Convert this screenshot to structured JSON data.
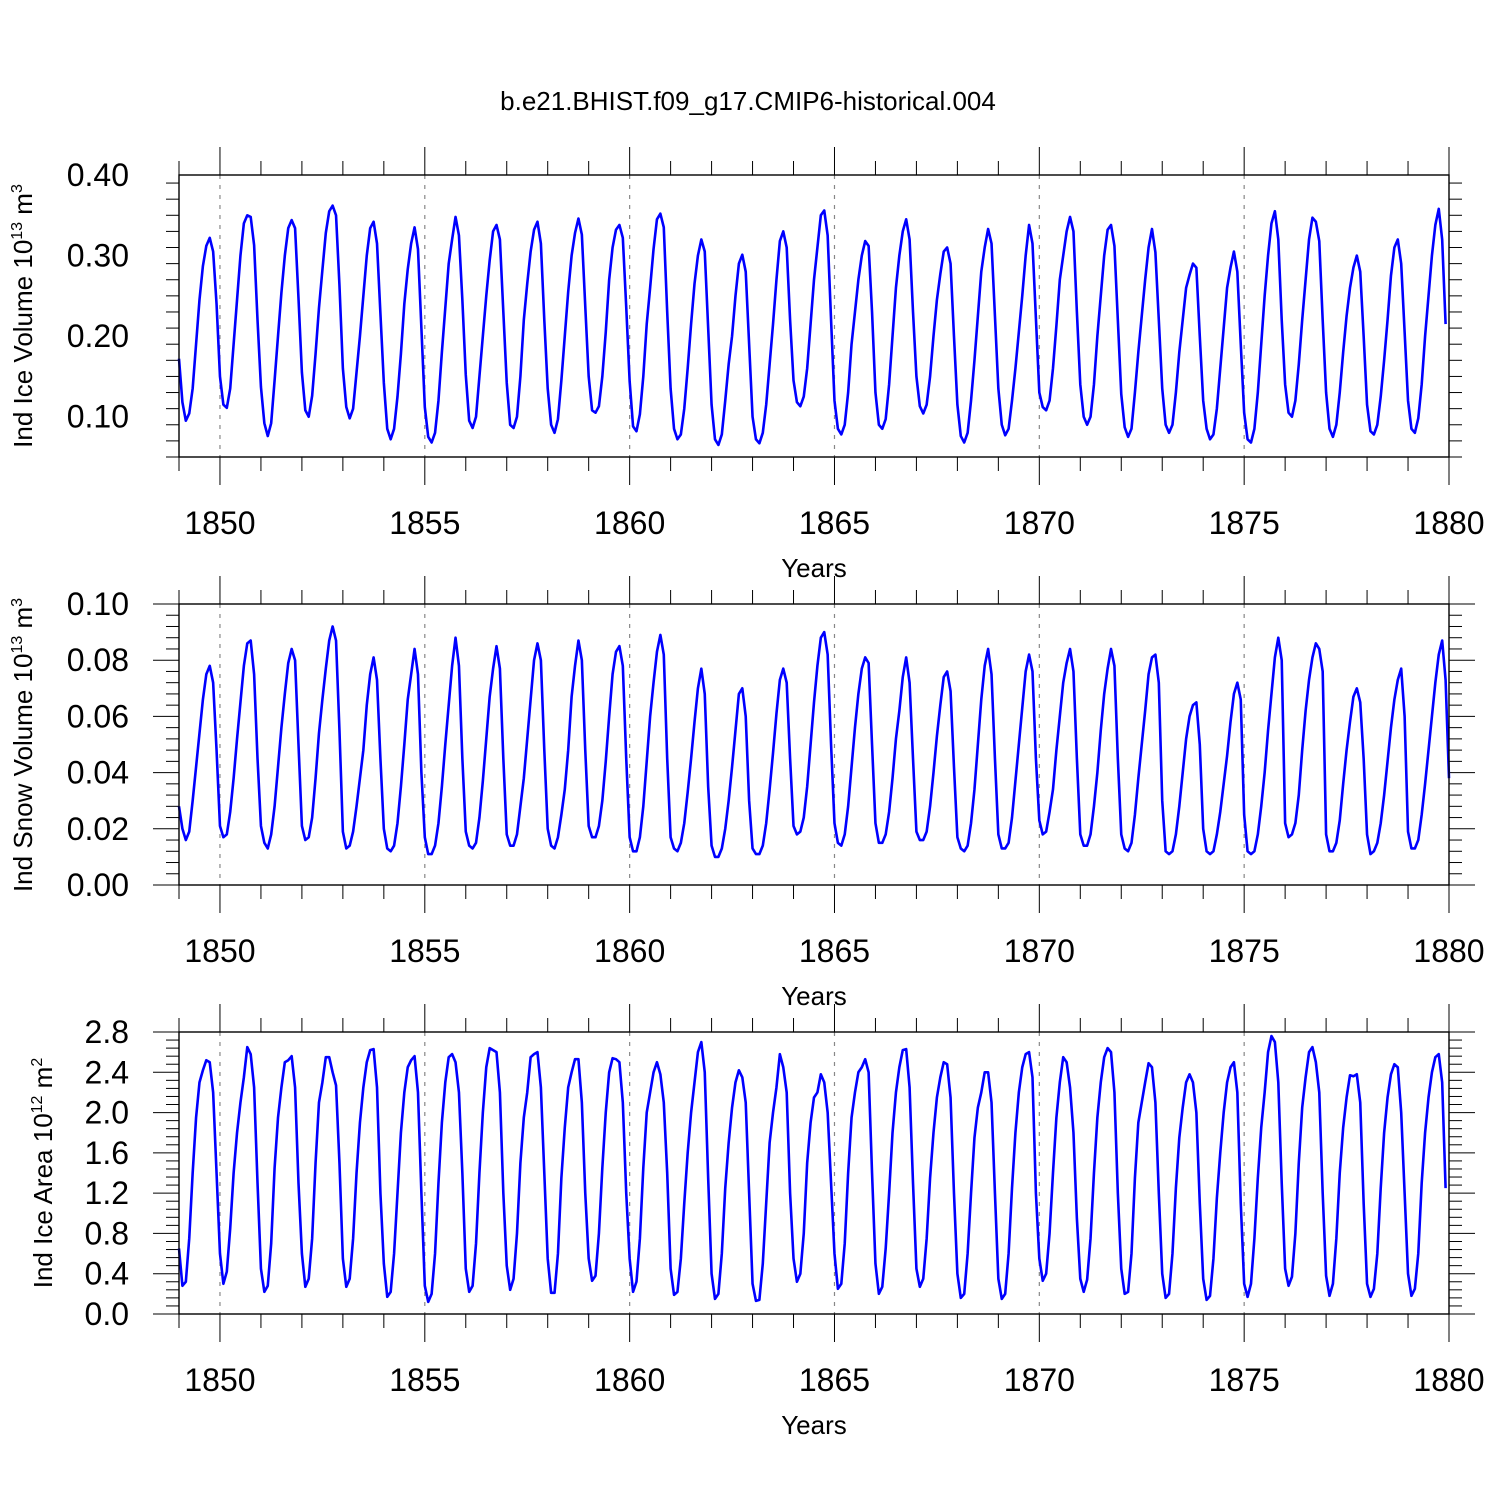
{
  "title": "b.e21.BHIST.f09_g17.CMIP6-historical.004",
  "line_color": "#0000ff",
  "chart_data": [
    {
      "id": "ice_volume",
      "type": "line",
      "ylabel": {
        "base": "Ind Ice Volume 10",
        "exp": "13",
        "unit": " m",
        "unit_exp": "3"
      },
      "xlabel": "Years",
      "xlim": [
        1849.0,
        1880.0
      ],
      "ylim": [
        0.05,
        0.4
      ],
      "yticks": [
        0.1,
        0.2,
        0.3,
        0.4
      ],
      "ytick_labels": [
        "0.10",
        "0.20",
        "0.30",
        "0.40"
      ],
      "xticks": [
        1850,
        1855,
        1860,
        1865,
        1870,
        1875,
        1880
      ],
      "xtick_labels": [
        "1850",
        "1855",
        "1860",
        "1865",
        "1870",
        "1875",
        "1880"
      ],
      "start_year": 1849.0,
      "monthly_values": [
        0.172,
        0.118,
        0.095,
        0.104,
        0.135,
        0.19,
        0.245,
        0.287,
        0.312,
        0.322,
        0.305,
        0.24,
        0.15,
        0.115,
        0.111,
        0.135,
        0.19,
        0.245,
        0.3,
        0.34,
        0.35,
        0.348,
        0.313,
        0.22,
        0.137,
        0.092,
        0.076,
        0.092,
        0.145,
        0.2,
        0.254,
        0.3,
        0.334,
        0.344,
        0.334,
        0.247,
        0.155,
        0.108,
        0.1,
        0.126,
        0.178,
        0.235,
        0.282,
        0.328,
        0.355,
        0.362,
        0.35,
        0.263,
        0.16,
        0.112,
        0.098,
        0.11,
        0.155,
        0.2,
        0.25,
        0.3,
        0.334,
        0.342,
        0.315,
        0.228,
        0.142,
        0.085,
        0.072,
        0.085,
        0.125,
        0.178,
        0.24,
        0.283,
        0.315,
        0.335,
        0.308,
        0.21,
        0.112,
        0.075,
        0.068,
        0.08,
        0.12,
        0.18,
        0.235,
        0.29,
        0.32,
        0.348,
        0.325,
        0.245,
        0.152,
        0.095,
        0.086,
        0.1,
        0.15,
        0.2,
        0.25,
        0.294,
        0.33,
        0.338,
        0.32,
        0.23,
        0.142,
        0.09,
        0.086,
        0.1,
        0.15,
        0.22,
        0.265,
        0.305,
        0.332,
        0.342,
        0.315,
        0.22,
        0.135,
        0.09,
        0.08,
        0.097,
        0.145,
        0.2,
        0.255,
        0.3,
        0.328,
        0.346,
        0.326,
        0.237,
        0.15,
        0.108,
        0.105,
        0.113,
        0.15,
        0.205,
        0.27,
        0.31,
        0.332,
        0.338,
        0.322,
        0.236,
        0.144,
        0.088,
        0.082,
        0.103,
        0.15,
        0.215,
        0.26,
        0.308,
        0.345,
        0.352,
        0.335,
        0.23,
        0.135,
        0.085,
        0.072,
        0.078,
        0.11,
        0.16,
        0.215,
        0.265,
        0.3,
        0.32,
        0.305,
        0.21,
        0.115,
        0.072,
        0.065,
        0.078,
        0.12,
        0.165,
        0.2,
        0.25,
        0.29,
        0.301,
        0.28,
        0.19,
        0.1,
        0.072,
        0.067,
        0.08,
        0.115,
        0.165,
        0.215,
        0.27,
        0.318,
        0.33,
        0.31,
        0.22,
        0.145,
        0.118,
        0.113,
        0.125,
        0.16,
        0.215,
        0.27,
        0.31,
        0.35,
        0.356,
        0.325,
        0.22,
        0.12,
        0.085,
        0.078,
        0.09,
        0.13,
        0.19,
        0.23,
        0.27,
        0.3,
        0.318,
        0.312,
        0.23,
        0.13,
        0.09,
        0.085,
        0.097,
        0.14,
        0.2,
        0.26,
        0.3,
        0.33,
        0.345,
        0.32,
        0.23,
        0.15,
        0.113,
        0.104,
        0.115,
        0.15,
        0.2,
        0.245,
        0.277,
        0.305,
        0.31,
        0.29,
        0.2,
        0.115,
        0.076,
        0.068,
        0.08,
        0.12,
        0.17,
        0.225,
        0.28,
        0.31,
        0.333,
        0.315,
        0.225,
        0.135,
        0.09,
        0.077,
        0.085,
        0.12,
        0.16,
        0.205,
        0.25,
        0.3,
        0.338,
        0.315,
        0.222,
        0.13,
        0.112,
        0.108,
        0.12,
        0.16,
        0.213,
        0.27,
        0.3,
        0.33,
        0.348,
        0.33,
        0.23,
        0.14,
        0.1,
        0.09,
        0.1,
        0.14,
        0.2,
        0.25,
        0.3,
        0.332,
        0.338,
        0.312,
        0.22,
        0.128,
        0.087,
        0.075,
        0.085,
        0.13,
        0.18,
        0.225,
        0.27,
        0.31,
        0.333,
        0.304,
        0.22,
        0.135,
        0.09,
        0.08,
        0.09,
        0.13,
        0.18,
        0.22,
        0.26,
        0.276,
        0.29,
        0.285,
        0.2,
        0.12,
        0.085,
        0.072,
        0.078,
        0.11,
        0.16,
        0.21,
        0.26,
        0.285,
        0.305,
        0.28,
        0.19,
        0.105,
        0.072,
        0.068,
        0.085,
        0.13,
        0.19,
        0.25,
        0.3,
        0.34,
        0.355,
        0.32,
        0.22,
        0.14,
        0.105,
        0.1,
        0.12,
        0.165,
        0.22,
        0.27,
        0.32,
        0.347,
        0.342,
        0.318,
        0.22,
        0.13,
        0.085,
        0.075,
        0.09,
        0.13,
        0.18,
        0.225,
        0.26,
        0.285,
        0.3,
        0.28,
        0.2,
        0.115,
        0.082,
        0.078,
        0.09,
        0.125,
        0.17,
        0.22,
        0.275,
        0.31,
        0.32,
        0.29,
        0.205,
        0.12,
        0.085,
        0.08,
        0.098,
        0.14,
        0.2,
        0.25,
        0.3,
        0.338,
        0.358,
        0.32,
        0.215
      ]
    },
    {
      "id": "snow_volume",
      "type": "line",
      "ylabel": {
        "base": "Ind Snow Volume 10",
        "exp": "13",
        "unit": " m",
        "unit_exp": "3"
      },
      "xlabel": "Years",
      "xlim": [
        1849.0,
        1880.0
      ],
      "ylim": [
        0.0,
        0.1
      ],
      "yticks": [
        0.0,
        0.02,
        0.04,
        0.06,
        0.08,
        0.1
      ],
      "ytick_labels": [
        "0.00",
        "0.02",
        "0.04",
        "0.06",
        "0.08",
        "0.10"
      ],
      "xticks": [
        1850,
        1855,
        1860,
        1865,
        1870,
        1875,
        1880
      ],
      "xtick_labels": [
        "1850",
        "1855",
        "1860",
        "1865",
        "1870",
        "1875",
        "1880"
      ],
      "start_year": 1849.0,
      "monthly_values": [
        0.028,
        0.02,
        0.016,
        0.019,
        0.03,
        0.042,
        0.054,
        0.066,
        0.075,
        0.078,
        0.072,
        0.048,
        0.021,
        0.017,
        0.018,
        0.026,
        0.038,
        0.052,
        0.065,
        0.078,
        0.086,
        0.087,
        0.075,
        0.045,
        0.021,
        0.015,
        0.013,
        0.018,
        0.028,
        0.042,
        0.056,
        0.068,
        0.079,
        0.084,
        0.08,
        0.05,
        0.021,
        0.016,
        0.017,
        0.024,
        0.038,
        0.054,
        0.066,
        0.077,
        0.087,
        0.092,
        0.087,
        0.055,
        0.019,
        0.013,
        0.014,
        0.019,
        0.028,
        0.038,
        0.048,
        0.064,
        0.075,
        0.081,
        0.073,
        0.045,
        0.02,
        0.013,
        0.012,
        0.014,
        0.022,
        0.035,
        0.05,
        0.066,
        0.075,
        0.084,
        0.075,
        0.04,
        0.017,
        0.011,
        0.011,
        0.014,
        0.022,
        0.035,
        0.05,
        0.064,
        0.078,
        0.088,
        0.078,
        0.045,
        0.019,
        0.014,
        0.013,
        0.015,
        0.024,
        0.037,
        0.052,
        0.067,
        0.077,
        0.085,
        0.077,
        0.045,
        0.018,
        0.014,
        0.014,
        0.018,
        0.028,
        0.038,
        0.052,
        0.066,
        0.08,
        0.086,
        0.08,
        0.048,
        0.02,
        0.014,
        0.013,
        0.017,
        0.025,
        0.034,
        0.048,
        0.067,
        0.078,
        0.087,
        0.08,
        0.048,
        0.021,
        0.017,
        0.017,
        0.021,
        0.03,
        0.044,
        0.06,
        0.075,
        0.083,
        0.085,
        0.078,
        0.045,
        0.017,
        0.012,
        0.012,
        0.017,
        0.028,
        0.044,
        0.06,
        0.072,
        0.083,
        0.089,
        0.082,
        0.045,
        0.017,
        0.013,
        0.012,
        0.015,
        0.022,
        0.033,
        0.045,
        0.058,
        0.07,
        0.077,
        0.068,
        0.035,
        0.014,
        0.01,
        0.01,
        0.013,
        0.02,
        0.03,
        0.042,
        0.055,
        0.068,
        0.07,
        0.06,
        0.03,
        0.013,
        0.011,
        0.011,
        0.014,
        0.022,
        0.034,
        0.047,
        0.061,
        0.073,
        0.077,
        0.072,
        0.045,
        0.021,
        0.018,
        0.019,
        0.024,
        0.035,
        0.05,
        0.065,
        0.078,
        0.088,
        0.09,
        0.082,
        0.05,
        0.022,
        0.015,
        0.014,
        0.018,
        0.028,
        0.042,
        0.056,
        0.068,
        0.077,
        0.081,
        0.079,
        0.05,
        0.022,
        0.015,
        0.015,
        0.018,
        0.026,
        0.038,
        0.052,
        0.062,
        0.074,
        0.081,
        0.072,
        0.045,
        0.019,
        0.016,
        0.016,
        0.019,
        0.028,
        0.04,
        0.053,
        0.064,
        0.074,
        0.076,
        0.069,
        0.042,
        0.017,
        0.013,
        0.012,
        0.014,
        0.022,
        0.034,
        0.05,
        0.066,
        0.078,
        0.084,
        0.075,
        0.045,
        0.018,
        0.013,
        0.013,
        0.015,
        0.024,
        0.037,
        0.05,
        0.063,
        0.076,
        0.082,
        0.076,
        0.045,
        0.023,
        0.018,
        0.019,
        0.026,
        0.034,
        0.048,
        0.06,
        0.072,
        0.079,
        0.084,
        0.076,
        0.045,
        0.018,
        0.014,
        0.014,
        0.018,
        0.028,
        0.04,
        0.055,
        0.068,
        0.077,
        0.084,
        0.078,
        0.045,
        0.018,
        0.013,
        0.012,
        0.015,
        0.025,
        0.038,
        0.05,
        0.062,
        0.075,
        0.081,
        0.082,
        0.072,
        0.03,
        0.012,
        0.011,
        0.012,
        0.018,
        0.028,
        0.04,
        0.052,
        0.06,
        0.064,
        0.065,
        0.05,
        0.02,
        0.012,
        0.011,
        0.012,
        0.018,
        0.026,
        0.036,
        0.046,
        0.058,
        0.068,
        0.072,
        0.066,
        0.025,
        0.012,
        0.011,
        0.012,
        0.018,
        0.028,
        0.04,
        0.055,
        0.068,
        0.081,
        0.088,
        0.08,
        0.022,
        0.017,
        0.018,
        0.022,
        0.032,
        0.048,
        0.062,
        0.073,
        0.081,
        0.086,
        0.084,
        0.076,
        0.018,
        0.012,
        0.012,
        0.015,
        0.023,
        0.036,
        0.048,
        0.058,
        0.067,
        0.07,
        0.065,
        0.045,
        0.018,
        0.011,
        0.012,
        0.015,
        0.022,
        0.032,
        0.044,
        0.056,
        0.066,
        0.073,
        0.077,
        0.06,
        0.019,
        0.013,
        0.013,
        0.016,
        0.025,
        0.036,
        0.048,
        0.06,
        0.072,
        0.082,
        0.087,
        0.073,
        0.038
      ]
    },
    {
      "id": "ice_area",
      "type": "line",
      "ylabel": {
        "base": "Ind Ice Area 10",
        "exp": "12",
        "unit": " m",
        "unit_exp": "2"
      },
      "xlabel": "Years",
      "xlim": [
        1849.0,
        1880.0
      ],
      "ylim": [
        0.0,
        2.8
      ],
      "yticks": [
        0.0,
        0.4,
        0.8,
        1.2,
        1.6,
        2.0,
        2.4,
        2.8
      ],
      "ytick_labels": [
        "0.0",
        "0.4",
        "0.8",
        "1.2",
        "1.6",
        "2.0",
        "2.4",
        "2.8"
      ],
      "xticks": [
        1850,
        1855,
        1860,
        1865,
        1870,
        1875,
        1880
      ],
      "xtick_labels": [
        "1850",
        "1855",
        "1860",
        "1865",
        "1870",
        "1875",
        "1880"
      ],
      "start_year": 1849.0,
      "monthly_values": [
        0.65,
        0.28,
        0.32,
        0.75,
        1.4,
        1.95,
        2.3,
        2.42,
        2.52,
        2.5,
        2.2,
        1.4,
        0.6,
        0.3,
        0.42,
        0.85,
        1.4,
        1.8,
        2.1,
        2.35,
        2.65,
        2.58,
        2.25,
        1.3,
        0.45,
        0.22,
        0.28,
        0.7,
        1.45,
        1.95,
        2.25,
        2.5,
        2.52,
        2.56,
        2.25,
        1.3,
        0.6,
        0.27,
        0.35,
        0.75,
        1.5,
        2.1,
        2.3,
        2.55,
        2.55,
        2.4,
        2.27,
        1.5,
        0.55,
        0.27,
        0.35,
        0.75,
        1.4,
        1.9,
        2.25,
        2.5,
        2.62,
        2.63,
        2.25,
        1.2,
        0.5,
        0.17,
        0.22,
        0.6,
        1.2,
        1.8,
        2.2,
        2.45,
        2.52,
        2.56,
        2.2,
        1.2,
        0.28,
        0.12,
        0.2,
        0.6,
        1.3,
        1.9,
        2.3,
        2.55,
        2.58,
        2.5,
        2.2,
        1.4,
        0.45,
        0.22,
        0.28,
        0.7,
        1.4,
        2.0,
        2.45,
        2.64,
        2.62,
        2.6,
        2.2,
        1.2,
        0.48,
        0.24,
        0.35,
        0.8,
        1.5,
        1.95,
        2.2,
        2.55,
        2.58,
        2.6,
        2.25,
        1.4,
        0.55,
        0.21,
        0.21,
        0.6,
        1.35,
        1.85,
        2.25,
        2.4,
        2.53,
        2.53,
        2.1,
        1.2,
        0.55,
        0.33,
        0.38,
        0.8,
        1.45,
        2.0,
        2.4,
        2.54,
        2.53,
        2.5,
        2.1,
        1.2,
        0.55,
        0.22,
        0.32,
        0.75,
        1.45,
        2.0,
        2.2,
        2.4,
        2.5,
        2.38,
        2.1,
        1.4,
        0.45,
        0.19,
        0.22,
        0.55,
        1.1,
        1.6,
        2.0,
        2.3,
        2.6,
        2.7,
        2.4,
        1.35,
        0.4,
        0.15,
        0.2,
        0.6,
        1.25,
        1.7,
        2.05,
        2.3,
        2.42,
        2.35,
        2.1,
        1.2,
        0.3,
        0.13,
        0.14,
        0.5,
        1.1,
        1.7,
        2.0,
        2.25,
        2.58,
        2.45,
        2.2,
        1.2,
        0.55,
        0.32,
        0.4,
        0.8,
        1.5,
        1.9,
        2.15,
        2.2,
        2.38,
        2.3,
        2.0,
        1.3,
        0.6,
        0.25,
        0.3,
        0.7,
        1.4,
        1.95,
        2.2,
        2.4,
        2.45,
        2.53,
        2.4,
        1.4,
        0.5,
        0.2,
        0.27,
        0.65,
        1.2,
        1.8,
        2.2,
        2.45,
        2.62,
        2.63,
        2.25,
        1.3,
        0.45,
        0.27,
        0.35,
        0.75,
        1.35,
        1.8,
        2.15,
        2.35,
        2.5,
        2.48,
        2.15,
        1.2,
        0.4,
        0.16,
        0.2,
        0.6,
        1.2,
        1.75,
        2.05,
        2.2,
        2.4,
        2.4,
        2.1,
        1.2,
        0.35,
        0.15,
        0.2,
        0.6,
        1.25,
        1.8,
        2.2,
        2.45,
        2.58,
        2.6,
        2.35,
        1.2,
        0.55,
        0.33,
        0.4,
        0.8,
        1.4,
        1.95,
        2.3,
        2.55,
        2.5,
        2.25,
        1.8,
        0.95,
        0.35,
        0.22,
        0.34,
        0.75,
        1.4,
        1.95,
        2.3,
        2.55,
        2.64,
        2.6,
        2.2,
        1.2,
        0.45,
        0.2,
        0.22,
        0.6,
        1.35,
        1.9,
        2.1,
        2.3,
        2.49,
        2.45,
        2.1,
        1.2,
        0.4,
        0.16,
        0.2,
        0.6,
        1.25,
        1.75,
        2.05,
        2.3,
        2.38,
        2.3,
        2.0,
        1.1,
        0.35,
        0.14,
        0.18,
        0.55,
        1.15,
        1.6,
        2.0,
        2.3,
        2.45,
        2.5,
        2.2,
        1.1,
        0.3,
        0.17,
        0.3,
        0.75,
        1.35,
        1.85,
        2.2,
        2.6,
        2.76,
        2.7,
        2.3,
        1.3,
        0.45,
        0.28,
        0.37,
        0.8,
        1.5,
        2.05,
        2.35,
        2.6,
        2.65,
        2.5,
        2.2,
        1.2,
        0.38,
        0.18,
        0.3,
        0.75,
        1.4,
        1.85,
        2.15,
        2.37,
        2.36,
        2.38,
        2.1,
        1.1,
        0.3,
        0.17,
        0.25,
        0.6,
        1.25,
        1.8,
        2.15,
        2.38,
        2.48,
        2.45,
        2.0,
        1.2,
        0.4,
        0.18,
        0.25,
        0.6,
        1.3,
        1.8,
        2.15,
        2.4,
        2.55,
        2.58,
        2.3,
        1.25
      ]
    }
  ]
}
